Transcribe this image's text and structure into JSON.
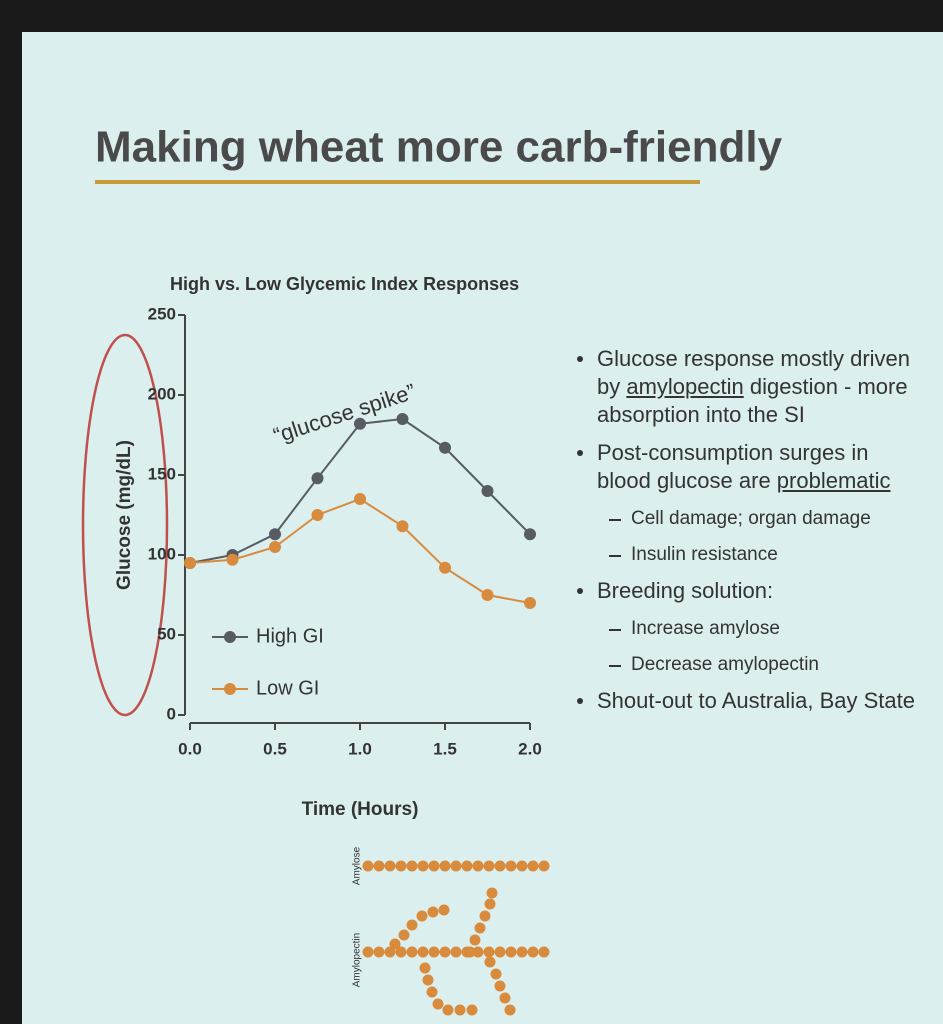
{
  "slide": {
    "title": "Making wheat more carb-friendly",
    "bullets": [
      {
        "segments": [
          {
            "text": "Glucose response mostly driven by "
          },
          {
            "text": "amylopectin",
            "underline": true
          },
          {
            "text": " digestion - more absorption into the SI"
          }
        ]
      },
      {
        "segments": [
          {
            "text": "Post-consumption surges in blood glucose are "
          },
          {
            "text": "problematic",
            "underline": true
          }
        ],
        "sub": [
          "Cell damage; organ damage",
          "Insulin resistance"
        ]
      },
      {
        "segments": [
          {
            "text": "Breeding solution:"
          }
        ],
        "sub": [
          "Increase amylose",
          "Decrease amylopectin"
        ]
      },
      {
        "segments": [
          {
            "text": "Shout-out to Australia, Bay State"
          }
        ]
      }
    ],
    "diagram": {
      "amylose_label": "Amylose",
      "amylopectin_label": "Amylopectin"
    }
  },
  "chart_data": {
    "type": "line",
    "title": "High vs. Low Glycemic Index Responses",
    "annotation": "“glucose spike”",
    "xlabel": "Time (Hours)",
    "ylabel": "Glucose (mg/dL)",
    "x": [
      0,
      0.25,
      0.5,
      0.75,
      1.0,
      1.25,
      1.5,
      1.75,
      2.0
    ],
    "series": [
      {
        "name": "High GI",
        "color": "#565c61",
        "values": [
          95,
          100,
          113,
          148,
          182,
          185,
          167,
          140,
          113
        ]
      },
      {
        "name": "Low GI",
        "color": "#d88b3c",
        "values": [
          95,
          97,
          105,
          125,
          135,
          118,
          92,
          75,
          70
        ]
      }
    ],
    "xlim": [
      0,
      2
    ],
    "xticks": [
      {
        "value": 0,
        "label": "0.0"
      },
      {
        "value": 0.5,
        "label": "0.5"
      },
      {
        "value": 1,
        "label": "1.0"
      },
      {
        "value": 1.5,
        "label": "1.5"
      },
      {
        "value": 2,
        "label": "2.0"
      }
    ],
    "ylim": [
      0,
      250
    ],
    "yticks": [
      0,
      50,
      100,
      150,
      200,
      250
    ],
    "legend": "lower left"
  }
}
